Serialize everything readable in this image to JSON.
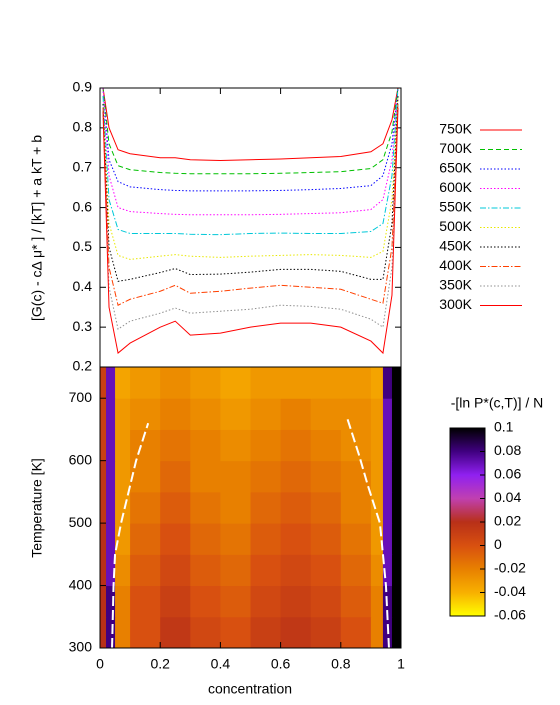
{
  "chart_data": [
    {
      "type": "line",
      "ylabel": "[G(c) - cΔ μ* ] / [kT] + a kT + b",
      "xlim": [
        0,
        1
      ],
      "ylim": [
        0.2,
        0.9
      ],
      "yticks": [
        0.2,
        0.3,
        0.4,
        0.5,
        0.6,
        0.7,
        0.8,
        0.9
      ],
      "x": [
        0.01,
        0.03,
        0.06,
        0.1,
        0.2,
        0.25,
        0.3,
        0.4,
        0.5,
        0.6,
        0.7,
        0.8,
        0.9,
        0.94,
        0.97,
        0.99
      ],
      "series": [
        {
          "name": "750K",
          "color": "#ff0000",
          "dash": "solid",
          "values": [
            0.9,
            0.8,
            0.745,
            0.735,
            0.725,
            0.725,
            0.72,
            0.718,
            0.72,
            0.722,
            0.725,
            0.728,
            0.74,
            0.76,
            0.82,
            0.9
          ]
        },
        {
          "name": "700K",
          "color": "#00c000",
          "dash": "dashed",
          "values": [
            0.9,
            0.76,
            0.705,
            0.695,
            0.688,
            0.686,
            0.685,
            0.685,
            0.685,
            0.686,
            0.688,
            0.69,
            0.698,
            0.72,
            0.79,
            0.9
          ]
        },
        {
          "name": "650K",
          "color": "#0000ff",
          "dash": "dotted",
          "values": [
            0.9,
            0.72,
            0.665,
            0.652,
            0.645,
            0.643,
            0.642,
            0.642,
            0.642,
            0.643,
            0.645,
            0.648,
            0.655,
            0.68,
            0.76,
            0.9
          ]
        },
        {
          "name": "600K",
          "color": "#ff00ff",
          "dash": "dotted",
          "values": [
            0.9,
            0.68,
            0.6,
            0.59,
            0.585,
            0.583,
            0.582,
            0.582,
            0.582,
            0.583,
            0.585,
            0.587,
            0.595,
            0.62,
            0.72,
            0.9
          ]
        },
        {
          "name": "550K",
          "color": "#00c8d8",
          "dash": "dashdot",
          "values": [
            0.88,
            0.62,
            0.545,
            0.535,
            0.535,
            0.535,
            0.533,
            0.532,
            0.535,
            0.536,
            0.535,
            0.535,
            0.54,
            0.56,
            0.68,
            0.9
          ]
        },
        {
          "name": "500K",
          "color": "#e8e800",
          "dash": "dotted",
          "values": [
            0.86,
            0.56,
            0.48,
            0.47,
            0.478,
            0.482,
            0.478,
            0.475,
            0.478,
            0.48,
            0.482,
            0.48,
            0.475,
            0.49,
            0.62,
            0.88
          ]
        },
        {
          "name": "450K",
          "color": "#000000",
          "dash": "dotted",
          "values": [
            0.86,
            0.5,
            0.415,
            0.42,
            0.437,
            0.447,
            0.432,
            0.433,
            0.438,
            0.445,
            0.445,
            0.44,
            0.42,
            0.42,
            0.56,
            0.88
          ]
        },
        {
          "name": "400K",
          "color": "#ff4000",
          "dash": "dashdot",
          "values": [
            0.85,
            0.45,
            0.355,
            0.37,
            0.39,
            0.405,
            0.385,
            0.39,
            0.398,
            0.405,
            0.4,
            0.395,
            0.37,
            0.36,
            0.5,
            0.86
          ]
        },
        {
          "name": "350K",
          "color": "#909090",
          "dash": "dotted",
          "values": [
            0.84,
            0.4,
            0.295,
            0.315,
            0.335,
            0.348,
            0.335,
            0.34,
            0.345,
            0.355,
            0.352,
            0.345,
            0.32,
            0.3,
            0.45,
            0.86
          ]
        },
        {
          "name": "300K",
          "color": "#ff0000",
          "dash": "solid",
          "values": [
            0.84,
            0.35,
            0.235,
            0.26,
            0.3,
            0.315,
            0.28,
            0.285,
            0.3,
            0.31,
            0.31,
            0.3,
            0.265,
            0.235,
            0.38,
            0.85
          ]
        }
      ]
    },
    {
      "type": "heatmap",
      "xlabel": "concentration",
      "ylabel": "Temperature [K]",
      "xlim": [
        0,
        1
      ],
      "ylim": [
        300,
        750
      ],
      "xticks": [
        0,
        0.2,
        0.4,
        0.6,
        0.8,
        1
      ],
      "yticks": [
        300,
        400,
        500,
        600,
        700
      ],
      "x_edges": [
        0,
        0.02,
        0.05,
        0.1,
        0.2,
        0.3,
        0.4,
        0.5,
        0.6,
        0.7,
        0.8,
        0.9,
        0.94,
        0.97,
        1
      ],
      "y_edges": [
        300,
        350,
        400,
        450,
        500,
        550,
        600,
        650,
        700,
        750
      ],
      "z": [
        [
          0.02,
          0.08,
          -0.02,
          0.0,
          0.015,
          0.005,
          0.0,
          0.01,
          0.015,
          0.01,
          0.0,
          -0.02,
          0.08,
          0.1
        ],
        [
          0.02,
          0.08,
          -0.02,
          0.0,
          0.01,
          0.0,
          -0.005,
          0.005,
          0.01,
          0.005,
          -0.005,
          -0.02,
          0.08,
          0.1
        ],
        [
          0.02,
          0.07,
          -0.025,
          -0.005,
          0.005,
          -0.005,
          -0.01,
          0.0,
          0.005,
          0.0,
          -0.01,
          -0.025,
          0.07,
          0.1
        ],
        [
          0.02,
          0.07,
          -0.03,
          -0.01,
          0.0,
          -0.01,
          -0.015,
          -0.005,
          0.0,
          -0.005,
          -0.015,
          -0.03,
          0.07,
          0.1
        ],
        [
          0.015,
          0.07,
          -0.03,
          -0.015,
          -0.005,
          -0.015,
          -0.02,
          -0.01,
          -0.005,
          -0.01,
          -0.02,
          -0.03,
          0.07,
          0.1
        ],
        [
          0.015,
          0.07,
          -0.03,
          -0.02,
          -0.01,
          -0.02,
          -0.02,
          -0.015,
          -0.01,
          -0.015,
          -0.02,
          -0.03,
          0.07,
          0.1
        ],
        [
          0.01,
          0.07,
          -0.03,
          -0.02,
          -0.015,
          -0.02,
          -0.025,
          -0.02,
          -0.015,
          -0.02,
          -0.025,
          -0.03,
          0.07,
          0.1
        ],
        [
          0.01,
          0.07,
          -0.03,
          -0.025,
          -0.02,
          -0.025,
          -0.03,
          -0.025,
          -0.02,
          -0.025,
          -0.025,
          -0.03,
          0.07,
          0.1
        ],
        [
          0.01,
          0.07,
          -0.035,
          -0.03,
          -0.025,
          -0.03,
          -0.035,
          -0.03,
          -0.03,
          -0.03,
          -0.03,
          -0.035,
          0.08,
          0.1
        ]
      ],
      "zlim": [
        -0.06,
        0.1
      ],
      "zticks": [
        -0.06,
        -0.04,
        -0.02,
        0,
        0.02,
        0.04,
        0.06,
        0.08,
        0.1
      ],
      "colorbar_title": "-[ln P*(c,T)] / N",
      "colormap": [
        "#ffff00",
        "#f8b000",
        "#e88000",
        "#d85010",
        "#b83018",
        "#c040b0",
        "#9020f0",
        "#400080",
        "#000000"
      ],
      "curve_color": "#ffffff",
      "curves": [
        {
          "x": [
            0.04,
            0.045,
            0.05,
            0.07,
            0.09,
            0.12,
            0.16
          ],
          "y": [
            300,
            400,
            450,
            500,
            540,
            600,
            660
          ]
        },
        {
          "x": [
            0.96,
            0.95,
            0.93,
            0.89,
            0.86,
            0.82
          ],
          "y": [
            300,
            400,
            500,
            560,
            610,
            670
          ]
        }
      ]
    }
  ]
}
